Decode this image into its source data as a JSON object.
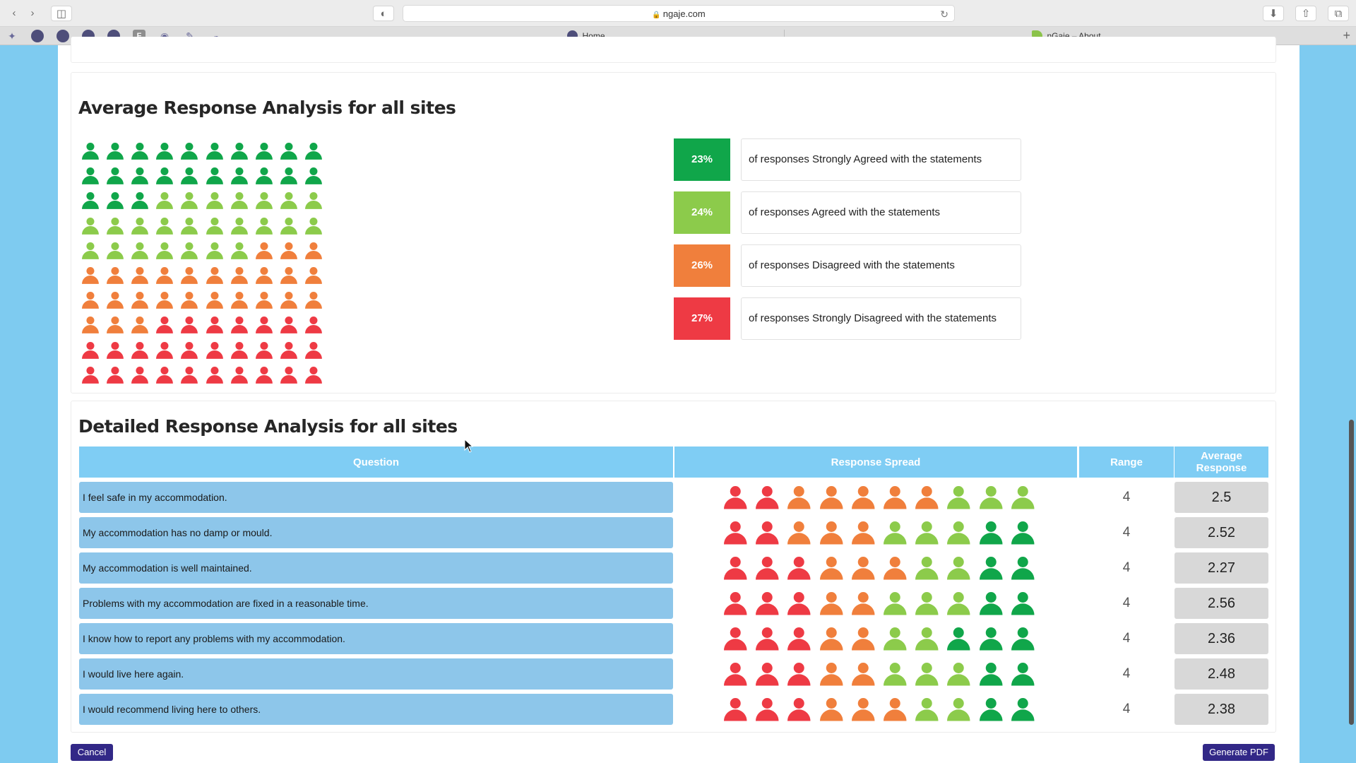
{
  "browser": {
    "url": "ngaje.com",
    "tabs": [
      {
        "label": "Home"
      },
      {
        "label": "nGaje – About"
      }
    ]
  },
  "colors": {
    "strongly_agree": "#10a64a",
    "agree": "#8ccb4b",
    "disagree": "#f07f3c",
    "strongly_disagree": "#ee3a44"
  },
  "average": {
    "title": "Average Response Analysis for all sites",
    "icon_grid": {
      "columns": 10,
      "rows": 10,
      "counts": [
        23,
        24,
        26,
        27
      ]
    },
    "legend": [
      {
        "level": "strongly_agree",
        "percent": "23%",
        "text": "of responses Strongly Agreed with the statements"
      },
      {
        "level": "agree",
        "percent": "24%",
        "text": "of responses Agreed with the statements"
      },
      {
        "level": "disagree",
        "percent": "26%",
        "text": "of responses Disagreed with the statements"
      },
      {
        "level": "strongly_disagree",
        "percent": "27%",
        "text": "of responses Strongly Disagreed with the statements"
      }
    ]
  },
  "detailed": {
    "title": "Detailed Response Analysis for all sites",
    "headers": {
      "question": "Question",
      "spread": "Response Spread",
      "range": "Range",
      "average": "Average Response"
    },
    "rows": [
      {
        "question": "I feel safe in my accommodation.",
        "spread": [
          2,
          5,
          3,
          0
        ],
        "range": "4",
        "average": "2.5"
      },
      {
        "question": "My accommodation has no damp or mould.",
        "spread": [
          2,
          3,
          3,
          2
        ],
        "range": "4",
        "average": "2.52"
      },
      {
        "question": "My accommodation is well maintained.",
        "spread": [
          3,
          3,
          2,
          2
        ],
        "range": "4",
        "average": "2.27"
      },
      {
        "question": "Problems with my accommodation are fixed in a reasonable time.",
        "spread": [
          3,
          2,
          3,
          2
        ],
        "range": "4",
        "average": "2.56"
      },
      {
        "question": "I know how to report any problems with my accommodation.",
        "spread": [
          3,
          2,
          2,
          3
        ],
        "range": "4",
        "average": "2.36"
      },
      {
        "question": "I would live here again.",
        "spread": [
          3,
          2,
          3,
          2
        ],
        "range": "4",
        "average": "2.48"
      },
      {
        "question": "I would recommend living here to others.",
        "spread": [
          3,
          3,
          2,
          2
        ],
        "range": "4",
        "average": "2.38"
      }
    ]
  },
  "buttons": {
    "cancel": "Cancel",
    "generate_pdf": "Generate PDF"
  }
}
